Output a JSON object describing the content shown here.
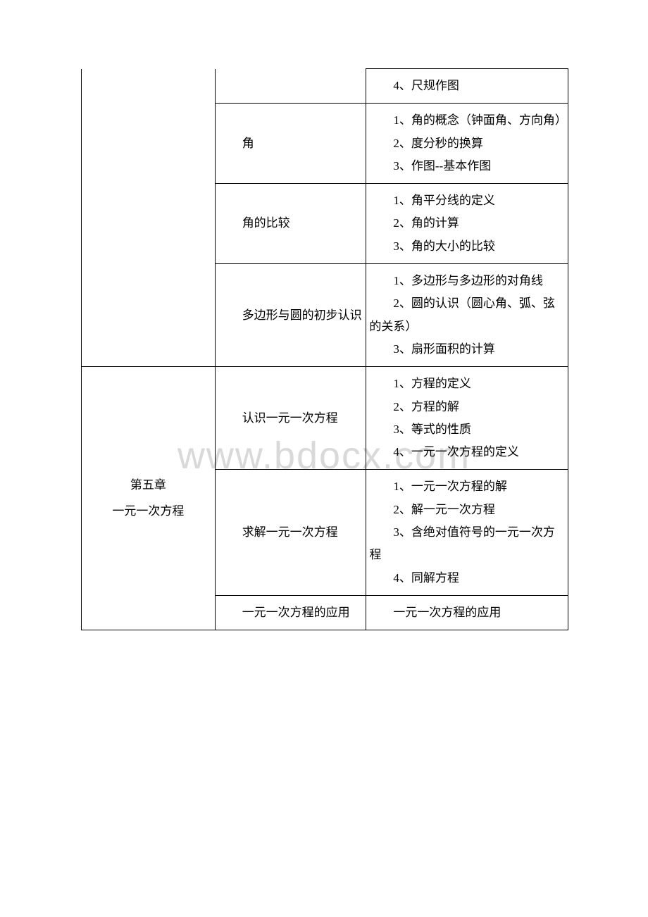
{
  "watermark": "www.bdocx.com",
  "table": {
    "rows": [
      {
        "col1": "",
        "col2": "",
        "col3_items": [
          "4、尺规作图"
        ],
        "col1_rowspan": 4,
        "col2_rowspan": 1,
        "border_top_col1": false,
        "border_top_col2": false
      },
      {
        "col2": "角",
        "col3_items": [
          "1、角的概念（钟面角、方向角）",
          "2、度分秒的换算",
          "3、作图--基本作图"
        ]
      },
      {
        "col2": "角的比较",
        "col3_items": [
          "1、角平分线的定义",
          "2、角的计算",
          "3、角的大小的比较"
        ]
      },
      {
        "col2": "多边形与圆的初步认识",
        "col3_items": [
          "1、多边形与多边形的对角线",
          "2、圆的认识（圆心角、弧、弦的关系）",
          "3、扇形面积的计算"
        ]
      },
      {
        "col1_lines": [
          "第五章",
          "一元一次方程"
        ],
        "col2": "认识一元一次方程",
        "col3_items": [
          "1、方程的定义",
          "2、方程的解",
          "3、等式的性质",
          "4、一元一次方程的定义"
        ],
        "col1_rowspan": 3
      },
      {
        "col2": "求解一元一次方程",
        "col3_items": [
          "1、一元一次方程的解",
          "2、解一元一次方程",
          "3、含绝对值符号的一元一次方程",
          "4、同解方程"
        ]
      },
      {
        "col2": "一元一次方程的应用",
        "col3_items": [
          "一元一次方程的应用"
        ]
      }
    ]
  }
}
